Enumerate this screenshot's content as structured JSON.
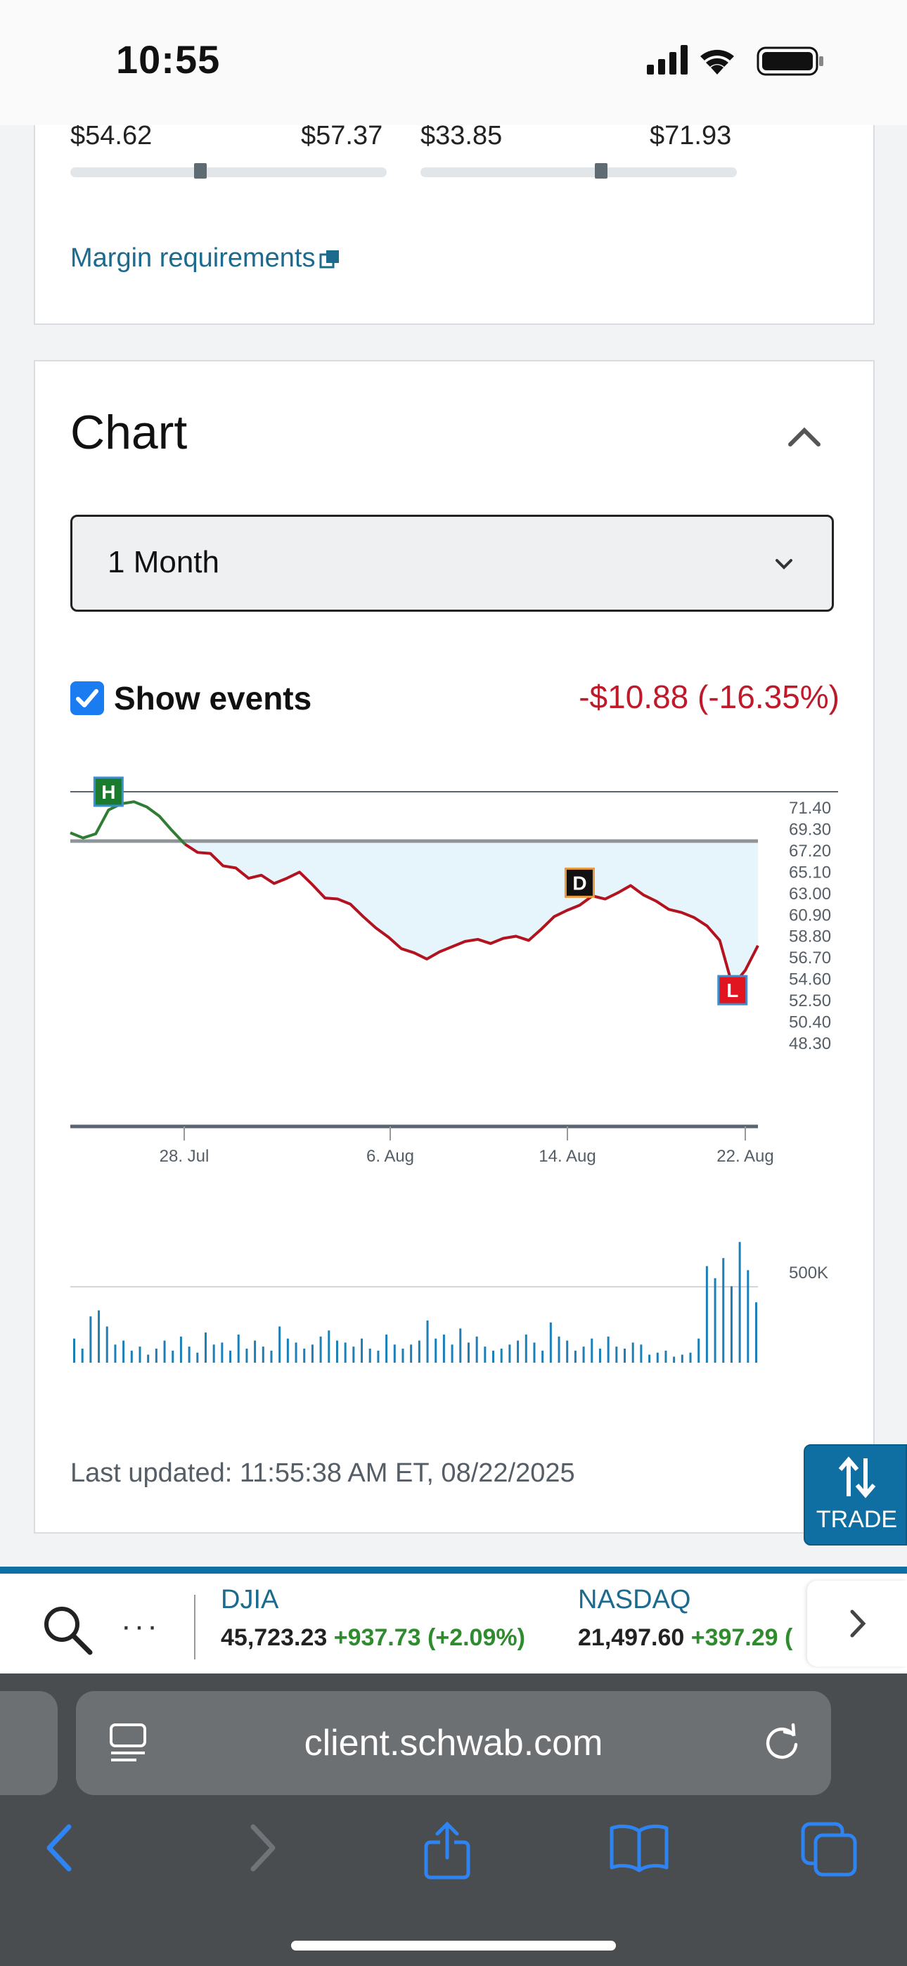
{
  "status_bar": {
    "time": "10:55"
  },
  "range_sliders": [
    {
      "low": "$54.62",
      "high": "$57.37",
      "position": 0.41
    },
    {
      "low": "$33.85",
      "high": "$71.93",
      "position": 0.57
    }
  ],
  "margin_link": "Margin requirements",
  "chart_section": {
    "title": "Chart",
    "period": "1 Month",
    "show_events_label": "Show events",
    "show_events_checked": true,
    "change": "-$10.88 (-16.35%)",
    "last_updated": "Last updated: 11:55:38 AM ET, 08/22/2025"
  },
  "chart_data": {
    "type": "line",
    "y_tick_labels": [
      "71.40",
      "69.30",
      "67.20",
      "65.10",
      "63.00",
      "60.90",
      "58.80",
      "56.70",
      "54.60",
      "52.50",
      "50.40",
      "48.30"
    ],
    "x_tick_labels": [
      "28. Jul",
      "6. Aug",
      "14. Aug",
      "22. Aug"
    ],
    "ylim": [
      48.3,
      71.4
    ],
    "baseline": 66.5,
    "events": [
      {
        "label": "H",
        "type": "high",
        "color": "#1a7a2e"
      },
      {
        "label": "D",
        "type": "dividend",
        "color": "#111111"
      },
      {
        "label": "L",
        "type": "low",
        "color": "#e0151f"
      }
    ],
    "series": [
      {
        "values": [
          67.3,
          66.8,
          67.2,
          69.5,
          70.1,
          70.3,
          69.8,
          68.9,
          67.5,
          66.2,
          65.4,
          65.3,
          64.1,
          63.9,
          62.9,
          63.2,
          62.4,
          62.9,
          63.5,
          62.3,
          61.0,
          60.9,
          60.4,
          59.2,
          58.1,
          57.2,
          56.1,
          55.7,
          55.1,
          55.8,
          56.3,
          56.8,
          57.0,
          56.6,
          57.1,
          57.3,
          56.9,
          58.0,
          59.2,
          59.8,
          60.3,
          61.2,
          60.9,
          61.5,
          62.2,
          61.3,
          60.7,
          59.9,
          59.6,
          59.1,
          58.3,
          56.9,
          52.5,
          54.0,
          56.4
        ]
      }
    ],
    "volume": {
      "y_tick_labels": [
        "500K"
      ],
      "values": [
        120,
        70,
        230,
        260,
        180,
        90,
        110,
        60,
        80,
        40,
        70,
        110,
        60,
        130,
        80,
        50,
        150,
        90,
        100,
        60,
        140,
        70,
        110,
        80,
        60,
        180,
        120,
        100,
        70,
        90,
        130,
        160,
        110,
        100,
        80,
        120,
        70,
        60,
        140,
        90,
        70,
        90,
        110,
        210,
        120,
        140,
        90,
        170,
        100,
        130,
        80,
        60,
        70,
        90,
        110,
        140,
        100,
        60,
        200,
        130,
        110,
        60,
        80,
        120,
        70,
        130,
        80,
        70,
        100,
        90,
        40,
        50,
        60,
        30,
        40,
        50,
        120,
        480,
        420,
        520,
        380,
        600,
        460,
        300
      ]
    }
  },
  "trade_button": "TRADE",
  "ticker": {
    "more": "···",
    "indices": [
      {
        "name": "DJIA",
        "value": "45,723.23",
        "change": "+937.73 (+2.09%)"
      },
      {
        "name": "NASDAQ",
        "value": "21,497.60",
        "change": "+397.29 ("
      }
    ]
  },
  "browser": {
    "url": "client.schwab.com"
  },
  "icons": {
    "search": "search-icon",
    "reload": "reload-icon",
    "back": "back-arrow-icon",
    "forward": "forward-arrow-icon",
    "share": "share-icon",
    "bookmarks": "bookmarks-icon",
    "tabs": "tabs-icon"
  }
}
